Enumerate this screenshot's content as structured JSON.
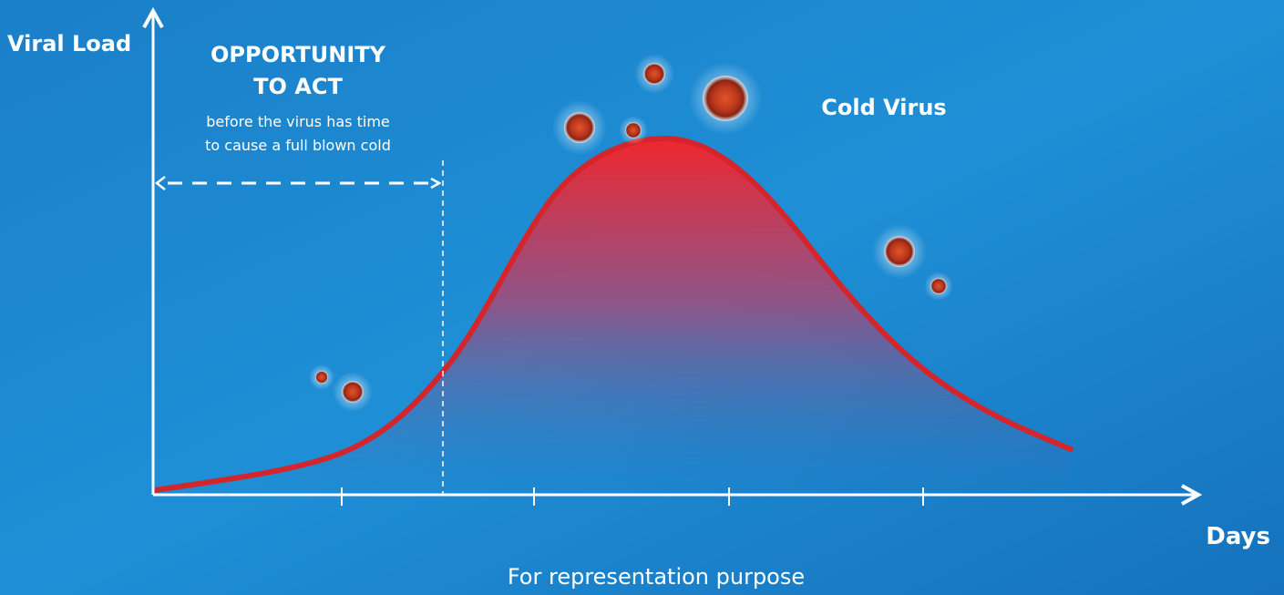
{
  "axes": {
    "y_label": "Viral Load",
    "x_label": "Days"
  },
  "annotation": {
    "title_lines": [
      "OPPORTUNITY",
      "TO ACT"
    ],
    "body_lines": [
      "before the virus has time",
      "to cause a full blown cold"
    ]
  },
  "curve_label": "Cold Virus",
  "footnote": "For representation purpose"
}
